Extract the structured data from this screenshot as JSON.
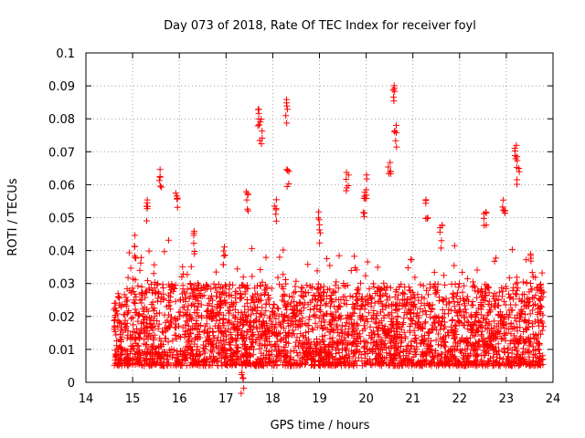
{
  "chart_data": {
    "type": "scatter",
    "title": "Day 073 of 2018, Rate Of TEC Index for receiver foyl",
    "xlabel": "GPS time / hours",
    "ylabel": "ROTI / TECUs",
    "xlim": [
      14,
      24
    ],
    "ylim": [
      0,
      0.1
    ],
    "xticks": [
      14,
      15,
      16,
      17,
      18,
      19,
      20,
      21,
      22,
      23,
      24
    ],
    "yticks": [
      0,
      0.01,
      0.02,
      0.03,
      0.04,
      0.05,
      0.06,
      0.07,
      0.08,
      0.09,
      0.1
    ],
    "grid": true,
    "marker": "+",
    "color": "#ff0000",
    "series": [
      {
        "name": "ROTI",
        "x_range": [
          14.6,
          23.8
        ],
        "baseline_range": [
          0.005,
          0.03
        ],
        "notable_points": [
          {
            "x": 14.65,
            "y": 0.027
          },
          {
            "x": 15.05,
            "y": 0.045
          },
          {
            "x": 15.3,
            "y": 0.057
          },
          {
            "x": 15.6,
            "y": 0.066
          },
          {
            "x": 15.95,
            "y": 0.058
          },
          {
            "x": 16.3,
            "y": 0.047
          },
          {
            "x": 16.95,
            "y": 0.043
          },
          {
            "x": 17.35,
            "y": 0.003
          },
          {
            "x": 17.45,
            "y": 0.058
          },
          {
            "x": 17.7,
            "y": 0.084
          },
          {
            "x": 17.75,
            "y": 0.08
          },
          {
            "x": 18.05,
            "y": 0.056
          },
          {
            "x": 18.3,
            "y": 0.086
          },
          {
            "x": 18.32,
            "y": 0.066
          },
          {
            "x": 19.0,
            "y": 0.052
          },
          {
            "x": 19.6,
            "y": 0.066
          },
          {
            "x": 19.95,
            "y": 0.058
          },
          {
            "x": 20.0,
            "y": 0.063
          },
          {
            "x": 20.5,
            "y": 0.069
          },
          {
            "x": 20.6,
            "y": 0.092
          },
          {
            "x": 20.62,
            "y": 0.079
          },
          {
            "x": 21.3,
            "y": 0.057
          },
          {
            "x": 21.6,
            "y": 0.048
          },
          {
            "x": 22.55,
            "y": 0.052
          },
          {
            "x": 22.95,
            "y": 0.058
          },
          {
            "x": 23.2,
            "y": 0.072
          },
          {
            "x": 23.25,
            "y": 0.068
          },
          {
            "x": 23.55,
            "y": 0.039
          },
          {
            "x": 23.75,
            "y": 0.03
          }
        ]
      }
    ]
  }
}
